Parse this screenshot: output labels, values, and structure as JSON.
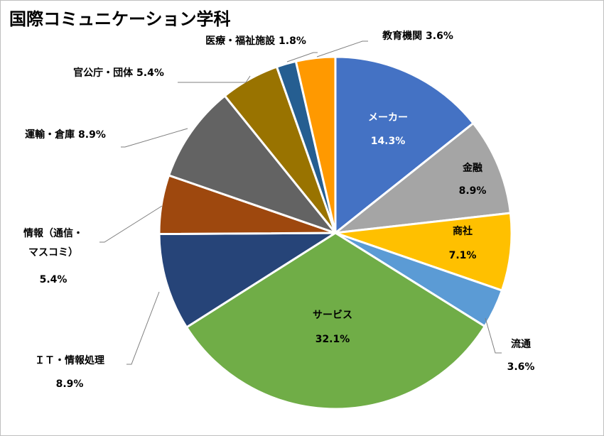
{
  "chart_data": {
    "type": "pie",
    "title": "国際コミュニケーション学科",
    "slices": [
      {
        "label": "メーカー",
        "value": 14.3,
        "value_label": "14.3%",
        "color": "#4472C4",
        "placement": "inside",
        "label_color": "#ffffff"
      },
      {
        "label": "金融",
        "value": 8.9,
        "value_label": "8.9%",
        "color": "#A5A5A5",
        "placement": "inside",
        "label_color": "#000000"
      },
      {
        "label": "商社",
        "value": 7.1,
        "value_label": "7.1%",
        "color": "#FFC000",
        "placement": "inside",
        "label_color": "#000000"
      },
      {
        "label": "流通",
        "value": 3.6,
        "value_label": "3.6%",
        "color": "#5B9BD5",
        "placement": "outside",
        "label_color": "#000000"
      },
      {
        "label": "サービス",
        "value": 32.1,
        "value_label": "32.1%",
        "color": "#70AD47",
        "placement": "inside",
        "label_color": "#000000"
      },
      {
        "label": "ＩＴ・情報処理",
        "value": 8.9,
        "value_label": "8.9%",
        "color": "#264478",
        "placement": "outside",
        "label_color": "#000000"
      },
      {
        "label": "情報（通信・マスコミ）",
        "label_lines": [
          "情報（通信・",
          "マスコミ）"
        ],
        "value": 5.4,
        "value_label": "5.4%",
        "color": "#9E480E",
        "placement": "outside",
        "label_color": "#000000"
      },
      {
        "label": "運輸・倉庫",
        "value": 8.9,
        "value_label": "8.9%",
        "color": "#636363",
        "placement": "outside",
        "label_color": "#000000"
      },
      {
        "label": "官公庁・団体",
        "value": 5.4,
        "value_label": "5.4%",
        "color": "#997300",
        "placement": "outside",
        "label_color": "#000000"
      },
      {
        "label": "医療・福祉施設",
        "value": 1.8,
        "value_label": "1.8%",
        "color": "#255E91",
        "placement": "outside",
        "label_color": "#000000"
      },
      {
        "label": "教育機関",
        "value": 3.6,
        "value_label": "3.6%",
        "color": "#FF9900",
        "placement": "outside",
        "label_color": "#000000"
      }
    ]
  }
}
